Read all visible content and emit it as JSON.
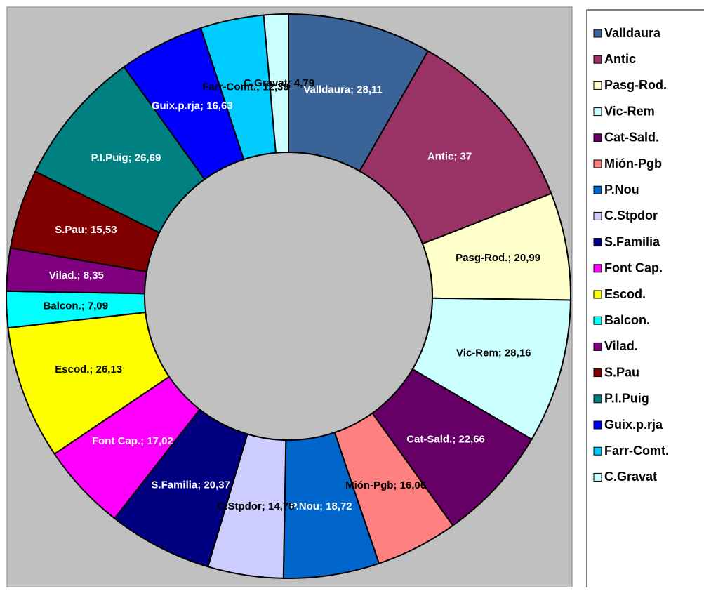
{
  "chart_data": {
    "type": "doughnut",
    "categories": [
      "Valldaura",
      "Antic",
      "Pasg-Rod.",
      "Vic-Rem",
      "Cat-Sald.",
      "Mión-Pgb",
      "P.Nou",
      "C.Stpdor",
      "S.Familia",
      "Font Cap.",
      "Escod.",
      "Balcon.",
      "Vilad.",
      "S.Pau",
      "P.I.Puig",
      "Guix.p.rja",
      "Farr-Comt.",
      "C.Gravat"
    ],
    "values": [
      28.11,
      37,
      20.99,
      28.16,
      22.66,
      16.06,
      18.72,
      14.75,
      20.37,
      17.02,
      26.13,
      7.09,
      8.35,
      15.53,
      26.69,
      16.63,
      12.39,
      4.79
    ],
    "value_labels": [
      "Valldaura; 28,11",
      "Antic; 37",
      "Pasg-Rod.; 20,99",
      "Vic-Rem; 28,16",
      "Cat-Sald.; 22,66",
      "Mión-Pgb; 16,06",
      "P.Nou; 18,72",
      "C.Stpdor; 14,75",
      "S.Familia; 20,37",
      "Font Cap.; 17,02",
      "Escod.; 26,13",
      "Balcon.; 7,09",
      "Vilad.; 8,35",
      "S.Pau; 15,53",
      "P.I.Puig; 26,69",
      "Guix.p.rja; 16,63",
      "Farr-Comt.; 12,39",
      "C.Gravat; 4,79"
    ],
    "colors": [
      "#3a6497",
      "#993366",
      "#ffffcc",
      "#ccffff",
      "#660066",
      "#ff8080",
      "#0066cc",
      "#ccccff",
      "#000080",
      "#ff00ff",
      "#ffff00",
      "#00ffff",
      "#800080",
      "#800000",
      "#008080",
      "#0000ff",
      "#00ccff",
      "#ccffff"
    ],
    "legend": "right"
  }
}
